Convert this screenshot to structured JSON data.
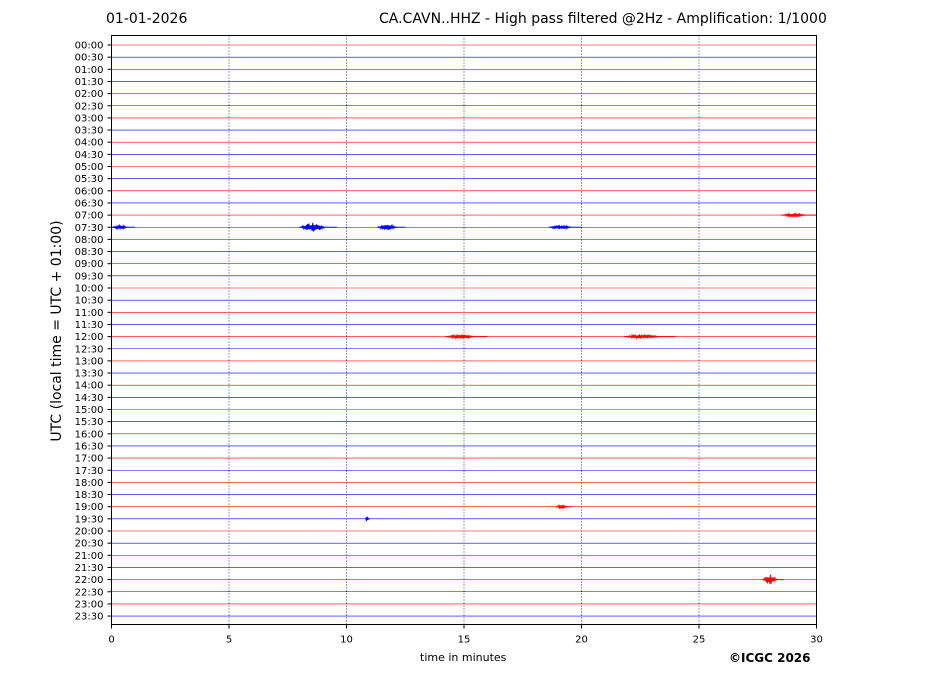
{
  "header": {
    "date": "01-01-2026",
    "title": "CA.CAVN..HHZ - High pass filtered @2Hz - Amplification: 1/1000"
  },
  "copyright": "©ICGC 2026",
  "colors": {
    "even_trace": "#ff0000",
    "odd_trace": "#0000ff",
    "grid": "#00008b"
  },
  "chart_data": {
    "type": "line",
    "title": "CA.CAVN..HHZ - High pass filtered @2Hz - Amplification: 1/1000",
    "xlabel": "time in minutes",
    "ylabel": "UTC (local time = UTC + 01:00)",
    "xlim": [
      0,
      30
    ],
    "x_ticks": [
      0,
      5,
      10,
      15,
      20,
      25,
      30
    ],
    "grid": "vertical dotted lines at x ticks",
    "y_categories": [
      "00:00",
      "00:30",
      "01:00",
      "01:30",
      "02:00",
      "02:30",
      "03:00",
      "03:30",
      "04:00",
      "04:30",
      "05:00",
      "05:30",
      "06:00",
      "06:30",
      "07:00",
      "07:30",
      "08:00",
      "08:30",
      "09:00",
      "09:30",
      "10:00",
      "10:30",
      "11:00",
      "11:30",
      "12:00",
      "12:30",
      "13:00",
      "13:30",
      "14:00",
      "14:30",
      "15:00",
      "15:30",
      "16:00",
      "16:30",
      "17:00",
      "17:30",
      "18:00",
      "18:30",
      "19:00",
      "19:30",
      "20:00",
      "20:30",
      "21:00",
      "21:30",
      "22:00",
      "22:30",
      "23:00",
      "23:30"
    ],
    "trace_colors": [
      "red",
      "blue"
    ],
    "events": [
      {
        "row": "07:00",
        "start": 28.5,
        "end": 30.0,
        "amplitude": 0.35
      },
      {
        "row": "07:30",
        "start": 0.0,
        "end": 1.0,
        "amplitude": 0.3
      },
      {
        "row": "07:30",
        "start": 8.0,
        "end": 9.6,
        "amplitude": 0.8
      },
      {
        "row": "07:30",
        "start": 11.3,
        "end": 12.5,
        "amplitude": 0.45
      },
      {
        "row": "07:30",
        "start": 18.6,
        "end": 20.0,
        "amplitude": 0.4
      },
      {
        "row": "12:00",
        "start": 14.2,
        "end": 16.0,
        "amplitude": 0.4
      },
      {
        "row": "12:00",
        "start": 21.8,
        "end": 24.0,
        "amplitude": 0.4
      },
      {
        "row": "19:00",
        "start": 18.9,
        "end": 19.6,
        "amplitude": 0.35
      },
      {
        "row": "19:30",
        "start": 10.8,
        "end": 11.0,
        "amplitude": 0.6
      },
      {
        "row": "22:00",
        "start": 27.7,
        "end": 28.6,
        "amplitude": 0.9
      }
    ]
  }
}
